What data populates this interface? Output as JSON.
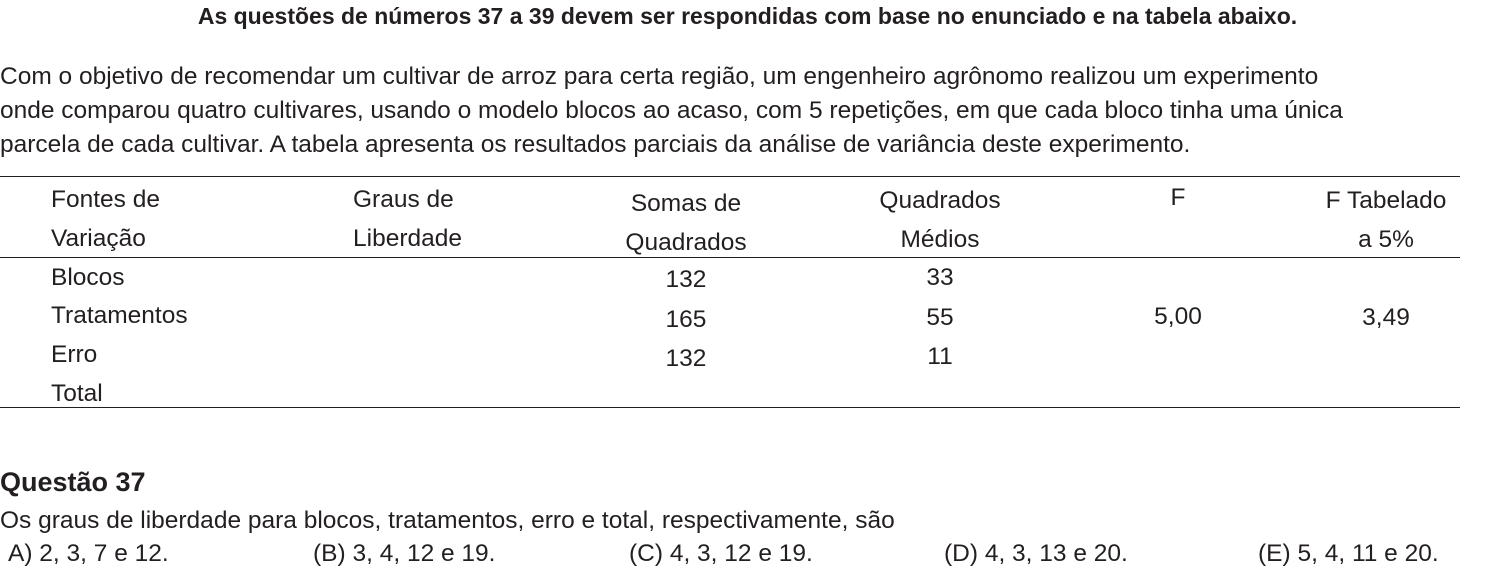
{
  "header": "As questões de números 37 a 39 devem ser respondidas com base no enunciado e na tabela abaixo.",
  "intro_lines": [
    "Com o objetivo de recomendar um cultivar de arroz para certa região, um engenheiro agrônomo realizou um experimento",
    "onde comparou quatro cultivares, usando o modelo blocos ao acaso, com 5 repetições, em que cada bloco tinha uma única",
    "parcela de cada cultivar. A tabela apresenta os resultados parciais da análise de variância deste experimento."
  ],
  "table": {
    "headers": {
      "fontes": [
        "Fontes de",
        "Variação"
      ],
      "graus": [
        "Graus de",
        "Liberdade"
      ],
      "somas": [
        "Somas de",
        "Quadrados"
      ],
      "quadrados": [
        "Quadrados",
        "Médios"
      ],
      "f": "F",
      "f_tab": [
        "F Tabelado",
        "a 5%"
      ]
    },
    "rows": [
      {
        "fonte": "Blocos",
        "somas": "132",
        "quadrados": "33"
      },
      {
        "fonte": "Tratamentos",
        "somas": "165",
        "quadrados": "55",
        "f": "5,00",
        "f_tab": "3,49"
      },
      {
        "fonte": "Erro",
        "somas": "132",
        "quadrados": "11"
      },
      {
        "fonte": "Total"
      }
    ]
  },
  "question": {
    "title": "Questão 37",
    "text": "Os graus de liberdade para blocos, tratamentos, erro e total, respectivamente, são",
    "options": [
      "A) 2, 3, 7 e 12.",
      "(B) 3, 4, 12 e 19.",
      "(C) 4, 3, 12 e 19.",
      "(D) 4, 3, 13 e  20.",
      "(E) 5, 4, 11 e 20."
    ]
  }
}
